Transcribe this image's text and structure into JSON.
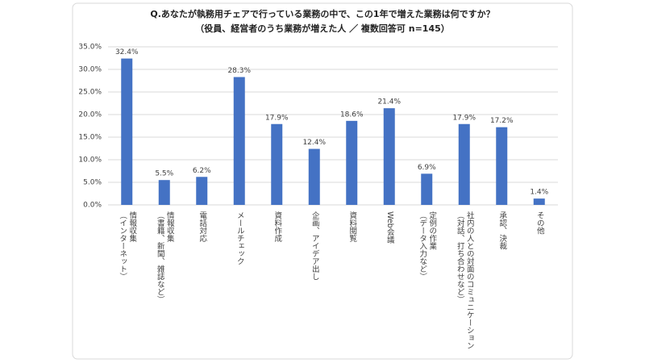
{
  "chart_data": {
    "type": "bar",
    "title": "Q.あなたが執務用チェアで行っている業務の中で、この1年で増えた業務は何ですか？",
    "subtitle": "（役員、経営者のうち業務が増えた人 ／ 複数回答可 n=145）",
    "categories": [
      "情報収集（インターネット）",
      "情報収集（書籍、新聞、雑誌など）",
      "電話対応",
      "メールチェック",
      "資料作成",
      "企画、アイデア出し",
      "資料閲覧",
      "Web会議",
      "定例の作業（データ入力など）",
      "社内の人との対面のコミュニケーション（対話、打ち合わせなど）",
      "承認、決裁",
      "その他"
    ],
    "values": [
      32.4,
      5.5,
      6.2,
      28.3,
      17.9,
      12.4,
      18.6,
      21.4,
      6.9,
      17.9,
      17.2,
      1.4
    ],
    "value_labels": [
      "32.4%",
      "5.5%",
      "6.2%",
      "28.3%",
      "17.9%",
      "12.4%",
      "18.6%",
      "21.4%",
      "6.9%",
      "17.9%",
      "17.2%",
      "1.4%"
    ],
    "color": "#4472c4",
    "ylim": [
      0,
      35
    ],
    "yticks": [
      {
        "value": 0,
        "label": "0.0%"
      },
      {
        "value": 5,
        "label": "5.0%"
      },
      {
        "value": 10,
        "label": "10.0%"
      },
      {
        "value": 15,
        "label": "15.0%"
      },
      {
        "value": 20,
        "label": "20.0%"
      },
      {
        "value": 25,
        "label": "25.0%"
      },
      {
        "value": 30,
        "label": "30.0%"
      },
      {
        "value": 35,
        "label": "35.0%"
      }
    ],
    "grid": true
  }
}
